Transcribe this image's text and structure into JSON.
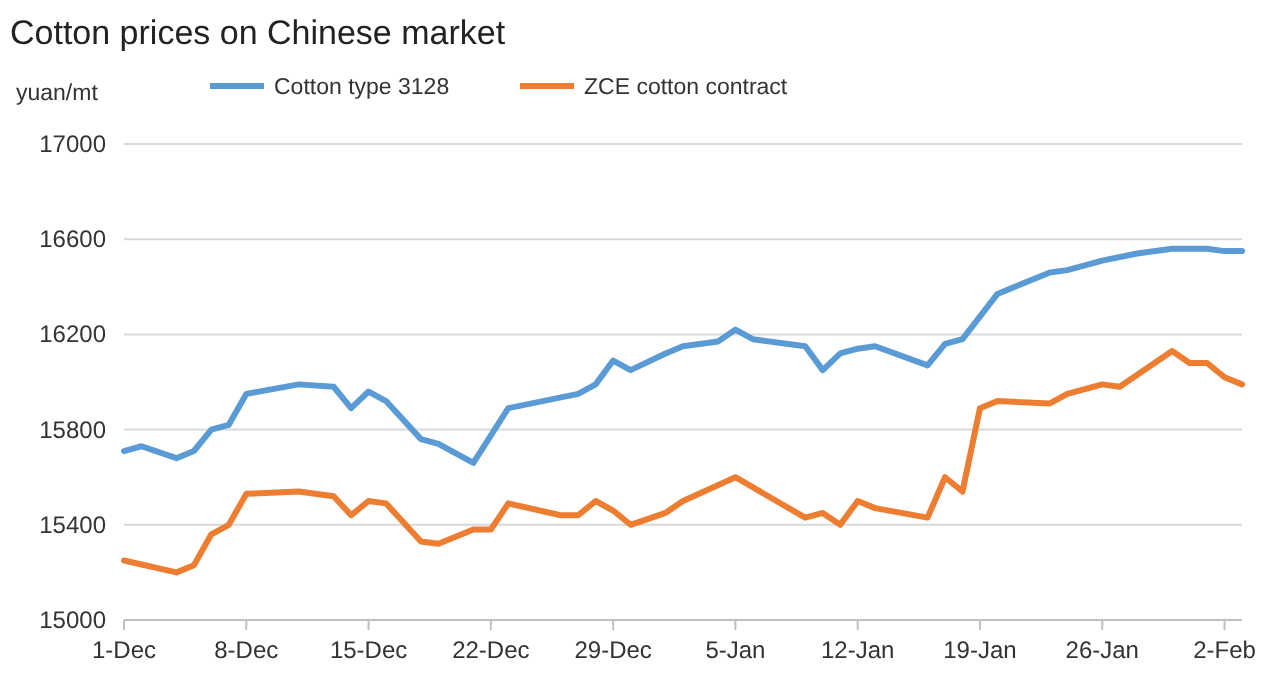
{
  "chart_data": {
    "type": "line",
    "title": "Cotton prices on Chinese market",
    "ylabel": "yuan/mt",
    "legend": "top",
    "grid": "y",
    "marker": "none",
    "line_style": "solid",
    "categories": [
      "1-Dec",
      null,
      null,
      null,
      null,
      null,
      null,
      "8-Dec",
      null,
      null,
      null,
      null,
      null,
      null,
      "15-Dec",
      null,
      null,
      null,
      null,
      null,
      null,
      "22-Dec",
      null,
      null,
      null,
      null,
      null,
      null,
      "29-Dec",
      null,
      null,
      null,
      null,
      null,
      null,
      "5-Jan",
      null,
      null,
      null,
      null,
      null,
      null,
      "12-Jan",
      null,
      null,
      null,
      null,
      null,
      null,
      "19-Jan",
      null,
      null,
      null,
      null,
      null,
      null,
      "26-Jan",
      null,
      null,
      null,
      null,
      null,
      null,
      "2-Feb",
      null
    ],
    "ylim": [
      15000,
      17000
    ],
    "yticks": [
      15000,
      15400,
      15800,
      16200,
      16600,
      17000
    ],
    "series": [
      {
        "name": "Cotton type 3128",
        "color": "#5b9bd5",
        "values": [
          15710,
          15730,
          null,
          15680,
          15710,
          15800,
          15820,
          15950,
          null,
          null,
          15990,
          null,
          15980,
          15890,
          15960,
          15920,
          null,
          15760,
          15740,
          null,
          15660,
          null,
          15890,
          null,
          null,
          null,
          15950,
          15990,
          16090,
          16050,
          null,
          16120,
          16150,
          null,
          16170,
          16220,
          16180,
          null,
          null,
          16150,
          16050,
          16120,
          16140,
          16150,
          null,
          null,
          16070,
          16160,
          16180,
          null,
          16370,
          null,
          null,
          16460,
          16470,
          null,
          16510,
          null,
          16540,
          null,
          16560,
          null,
          16560,
          16550,
          16550
        ]
      },
      {
        "name": "ZCE cotton contract",
        "color": "#ed7d31",
        "values": [
          15250,
          null,
          null,
          15200,
          15230,
          15360,
          15400,
          15530,
          null,
          null,
          15540,
          null,
          15520,
          15440,
          15500,
          15490,
          null,
          15330,
          15320,
          null,
          15380,
          15380,
          15490,
          null,
          null,
          15440,
          15440,
          15500,
          15460,
          15400,
          null,
          15450,
          15500,
          null,
          null,
          15600,
          null,
          null,
          null,
          15430,
          15450,
          15400,
          15500,
          15470,
          null,
          null,
          15430,
          15600,
          15540,
          15890,
          15920,
          null,
          null,
          15910,
          15950,
          null,
          15990,
          15980,
          null,
          null,
          16130,
          16080,
          16080,
          16020,
          15990
        ]
      }
    ]
  }
}
